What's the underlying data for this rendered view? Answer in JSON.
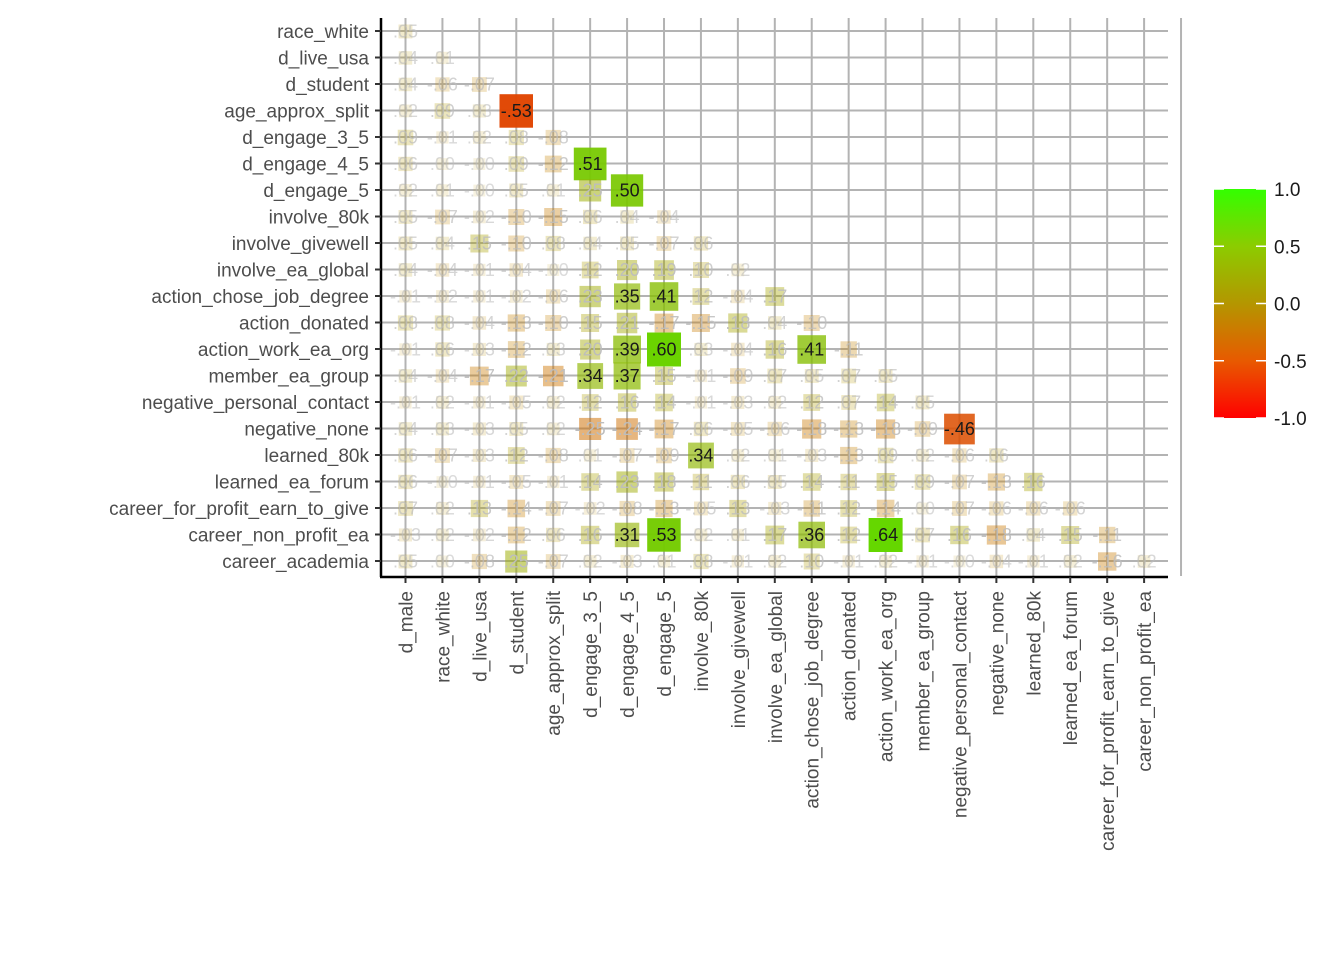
{
  "chart_data": {
    "type": "heatmap",
    "title": "",
    "xlabel": "",
    "ylabel": "",
    "value_range": [
      -1,
      1
    ],
    "rows": [
      "race_white",
      "d_live_usa",
      "d_student",
      "age_approx_split",
      "d_engage_3_5",
      "d_engage_4_5",
      "d_engage_5",
      "involve_80k",
      "involve_givewell",
      "involve_ea_global",
      "action_chose_job_degree",
      "action_donated",
      "action_work_ea_org",
      "member_ea_group",
      "negative_personal_contact",
      "negative_none",
      "learned_80k",
      "learned_ea_forum",
      "career_for_profit_earn_to_give",
      "career_non_profit_ea",
      "career_academia"
    ],
    "columns": [
      "d_male",
      "race_white",
      "d_live_usa",
      "d_student",
      "age_approx_split",
      "d_engage_3_5",
      "d_engage_4_5",
      "d_engage_5",
      "involve_80k",
      "involve_givewell",
      "involve_ea_global",
      "action_chose_job_degree",
      "action_donated",
      "action_work_ea_org",
      "member_ea_group",
      "negative_personal_contact",
      "negative_none",
      "learned_80k",
      "learned_ea_forum",
      "career_for_profit_earn_to_give",
      "career_non_profit_ea"
    ],
    "values": [
      [
        0.05
      ],
      [
        0.04,
        0.01
      ],
      [
        0.04,
        -0.06,
        -0.07
      ],
      [
        0.02,
        0.09,
        0.03,
        -0.53
      ],
      [
        0.09,
        -0.01,
        0.02,
        0.08,
        -0.08
      ],
      [
        0.06,
        0.0,
        -0.0,
        0.09,
        -0.12,
        0.51
      ],
      [
        0.02,
        0.01,
        -0.0,
        0.05,
        0.01,
        0.25,
        0.5
      ],
      [
        0.05,
        -0.07,
        -0.02,
        -0.1,
        -0.15,
        0.06,
        0.04,
        -0.04
      ],
      [
        0.05,
        0.04,
        0.15,
        -0.1,
        0.08,
        0.04,
        0.05,
        -0.07,
        0.06
      ],
      [
        0.04,
        -0.04,
        -0.01,
        -0.04,
        -0.0,
        0.12,
        0.2,
        0.19,
        0.1,
        0.02
      ],
      [
        -0.01,
        -0.02,
        -0.01,
        -0.02,
        -0.06,
        0.23,
        0.35,
        0.41,
        0.12,
        -0.04,
        0.17
      ],
      [
        0.08,
        0.08,
        -0.04,
        -0.13,
        -0.1,
        0.15,
        0.21,
        -0.17,
        -0.15,
        0.18,
        0.04,
        -0.1
      ],
      [
        -0.01,
        0.06,
        -0.03,
        -0.12,
        0.03,
        0.2,
        0.39,
        0.6,
        0.03,
        -0.04,
        0.16,
        0.41,
        -0.11
      ],
      [
        0.04,
        -0.04,
        -0.17,
        0.22,
        -0.21,
        0.34,
        0.37,
        0.15,
        -0.01,
        -0.09,
        0.07,
        0.05,
        0.07,
        0.05
      ],
      [
        -0.01,
        0.02,
        -0.01,
        -0.05,
        0.02,
        0.12,
        0.16,
        0.14,
        -0.01,
        -0.03,
        0.02,
        0.12,
        0.07,
        0.14,
        0.05
      ],
      [
        0.04,
        0.03,
        -0.03,
        0.05,
        0.02,
        -0.25,
        -0.24,
        -0.17,
        0.06,
        -0.05,
        -0.06,
        -0.18,
        -0.13,
        -0.18,
        -0.09,
        -0.46
      ],
      [
        0.06,
        -0.07,
        -0.03,
        0.12,
        -0.08,
        0.01,
        -0.07,
        -0.09,
        0.34,
        0.02,
        0.01,
        -0.03,
        -0.13,
        0.09,
        0.02,
        -0.06,
        0.06
      ],
      [
        0.06,
        -0.0,
        -0.01,
        -0.05,
        -0.01,
        0.14,
        0.23,
        0.18,
        0.11,
        0.06,
        0.05,
        0.14,
        0.11,
        0.15,
        0.09,
        -0.07,
        -0.13,
        0.16
      ],
      [
        0.07,
        0.02,
        0.13,
        -0.14,
        -0.07,
        -0.02,
        -0.08,
        -0.13,
        -0.05,
        0.13,
        -0.03,
        -0.11,
        0.12,
        -0.14,
        0.0,
        -0.07,
        -0.06,
        -0.06,
        -0.06
      ],
      [
        -0.03,
        0.02,
        -0.02,
        -0.12,
        0.06,
        0.16,
        0.31,
        0.53,
        0.02,
        0.01,
        0.17,
        0.36,
        0.12,
        0.64,
        0.07,
        0.16,
        -0.18,
        0.04,
        0.15,
        -0.11
      ],
      [
        0.05,
        0.0,
        -0.08,
        0.25,
        -0.07,
        0.02,
        -0.03,
        0.01,
        0.08,
        -0.01,
        0.02,
        0.1,
        -0.01,
        0.02,
        -0.01,
        -0.0,
        -0.04,
        -0.01,
        0.02,
        -0.16,
        0.02
      ]
    ],
    "cell_labels": [
      [
        ".05"
      ],
      [
        ".04",
        ".01"
      ],
      [
        ".04",
        "-.06",
        "-.07"
      ],
      [
        ".02",
        ".09",
        ".03",
        "-.53"
      ],
      [
        ".09",
        "-.01",
        ".02",
        ".08",
        "-.08"
      ],
      [
        ".06",
        ".00",
        "-.00",
        ".09",
        "-.12",
        ".51"
      ],
      [
        ".02",
        ".01",
        "-.00",
        ".05",
        ".01",
        ".25",
        ".50"
      ],
      [
        ".05",
        "-.07",
        "-.02",
        "-.10",
        "-.15",
        ".06",
        ".04",
        "-.04"
      ],
      [
        ".05",
        ".04",
        ".15",
        "-.10",
        ".08",
        ".04",
        ".05",
        "-.07",
        ".06"
      ],
      [
        ".04",
        "-.04",
        "-.01",
        "-.04",
        "-.00",
        ".12",
        ".20",
        ".19",
        ".10",
        ".02"
      ],
      [
        "-.01",
        "-.02",
        "-.01",
        "-.02",
        "-.06",
        ".23",
        ".35",
        ".41",
        ".12",
        "-.04",
        ".17"
      ],
      [
        ".08",
        ".08",
        "-.04",
        "-.13",
        "-.10",
        ".15",
        ".21",
        "-.17",
        "-.15",
        ".18",
        ".04",
        "-.10"
      ],
      [
        "-.01",
        ".06",
        "-.03",
        "-.12",
        ".03",
        ".20",
        ".39",
        ".60",
        ".03",
        "-.04",
        ".16",
        ".41",
        "-.11"
      ],
      [
        ".04",
        "-.04",
        "-.17",
        ".22",
        "-.21",
        ".34",
        ".37",
        ".15",
        "-.01",
        "-.09",
        ".07",
        ".05",
        ".07",
        ".05"
      ],
      [
        "-.01",
        ".02",
        "-.01",
        "-.05",
        ".02",
        ".12",
        ".16",
        ".14",
        "-.01",
        "-.03",
        ".02",
        ".12",
        ".07",
        ".14",
        ".05"
      ],
      [
        ".04",
        ".03",
        "-.03",
        ".05",
        ".02",
        "-.25",
        "-.24",
        "-.17",
        ".06",
        "-.05",
        "-.06",
        "-.18",
        "-.13",
        "-.18",
        "-.09",
        "-.46"
      ],
      [
        ".06",
        "-.07",
        "-.03",
        ".12",
        "-.08",
        ".01",
        "-.07",
        "-.09",
        ".34",
        ".02",
        ".01",
        "-.03",
        "-.13",
        ".09",
        ".02",
        "-.06",
        ".06"
      ],
      [
        ".06",
        "-.00",
        "-.01",
        "-.05",
        "-.01",
        ".14",
        ".23",
        ".18",
        ".11",
        ".06",
        ".05",
        ".14",
        ".11",
        ".15",
        ".09",
        "-.07",
        "-.13",
        ".16"
      ],
      [
        ".07",
        ".02",
        ".13",
        "-.14",
        "-.07",
        "-.02",
        "-.08",
        "-.13",
        "-.05",
        ".13",
        "-.03",
        "-.11",
        ".12",
        "-.14",
        ".00",
        "-.07",
        "-.06",
        "-.06",
        "-.06"
      ],
      [
        "-.03",
        ".02",
        "-.02",
        "-.12",
        ".06",
        ".16",
        ".31",
        ".53",
        ".02",
        ".01",
        ".17",
        ".36",
        ".12",
        ".64",
        ".07",
        ".16",
        "-.18",
        ".04",
        ".15",
        "-.11"
      ],
      [
        ".05",
        ".00",
        "-.08",
        ".25",
        "-.07",
        ".02",
        "-.03",
        ".01",
        ".08",
        "-.01",
        ".02",
        ".10",
        "-.01",
        ".02",
        "-.01",
        "-.00",
        "-.04",
        "-.01",
        ".02",
        "-.16",
        ".02"
      ]
    ],
    "legend": {
      "position": "right",
      "ticks": [
        "1.0",
        "0.5",
        "0.0",
        "-0.5",
        "-1.0"
      ],
      "tick_values": [
        1.0,
        0.5,
        0.0,
        -0.5,
        -1.0
      ],
      "gradient": [
        "#ff0000",
        "#c8a000",
        "#33ff00"
      ]
    },
    "colors": {
      "grid": "#b3b3b3",
      "axis": "#000000",
      "label": "#4d4d4d"
    }
  }
}
